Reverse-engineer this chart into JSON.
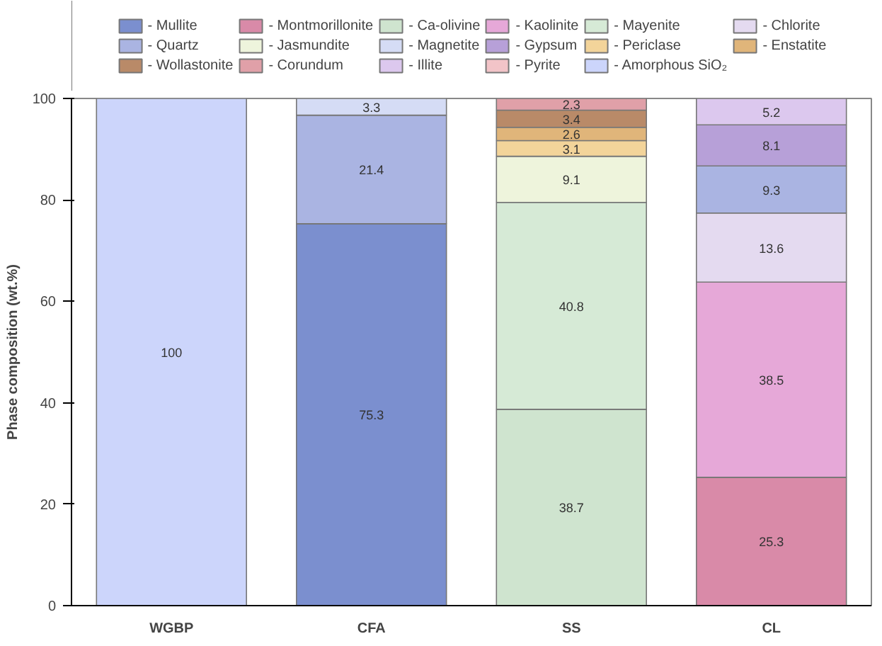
{
  "chart_data": {
    "type": "bar",
    "stacked": true,
    "ylabel": "Phase composition (wt.%)",
    "categories": [
      "WGBP",
      "CFA",
      "SS",
      "CL"
    ],
    "ylim": [
      0,
      100
    ],
    "yticks": [
      0,
      20,
      40,
      60,
      80,
      100
    ],
    "grid": false,
    "legend": "top",
    "series": [
      {
        "name": "- Mullite",
        "color": "#7b8fcf",
        "values": [
          null,
          75.3,
          null,
          null
        ],
        "value_labels": [
          null,
          "75.3",
          null,
          null
        ]
      },
      {
        "name": "- Montmorillonite",
        "color": "#d98aa8",
        "values": [
          null,
          null,
          null,
          25.3
        ],
        "value_labels": [
          null,
          null,
          null,
          "25.3"
        ]
      },
      {
        "name": "- Ca-olivine",
        "color": "#cfe4cf",
        "values": [
          null,
          null,
          38.7,
          null
        ],
        "value_labels": [
          null,
          null,
          "38.7",
          null
        ]
      },
      {
        "name": "- Kaolinite",
        "color": "#e6a8d8",
        "values": [
          null,
          null,
          null,
          38.5
        ],
        "value_labels": [
          null,
          null,
          null,
          "38.5"
        ]
      },
      {
        "name": "- Mayenite",
        "color": "#d6ead6",
        "values": [
          null,
          null,
          40.8,
          null
        ],
        "value_labels": [
          null,
          null,
          "40.8",
          null
        ]
      },
      {
        "name": "- Chlorite",
        "color": "#e4daf0",
        "values": [
          null,
          null,
          null,
          13.6
        ],
        "value_labels": [
          null,
          null,
          null,
          "13.6"
        ]
      },
      {
        "name": "- Quartz",
        "color": "#aab4e2",
        "values": [
          null,
          21.4,
          null,
          9.3
        ],
        "value_labels": [
          null,
          "21.4",
          null,
          "9.3"
        ]
      },
      {
        "name": "- Jasmundite",
        "color": "#eef4dc",
        "values": [
          null,
          null,
          9.1,
          null
        ],
        "value_labels": [
          null,
          null,
          "9.1",
          null
        ]
      },
      {
        "name": "- Magnetite",
        "color": "#d5dcf5",
        "values": [
          null,
          3.3,
          null,
          null
        ],
        "value_labels": [
          null,
          "3.3",
          null,
          null
        ]
      },
      {
        "name": "- Gypsum",
        "color": "#b7a0d8",
        "values": [
          null,
          null,
          null,
          8.1
        ],
        "value_labels": [
          null,
          null,
          null,
          "8.1"
        ]
      },
      {
        "name": "- Periclase",
        "color": "#f3d49a",
        "values": [
          null,
          null,
          3.1,
          null
        ],
        "value_labels": [
          null,
          null,
          "3.1",
          null
        ]
      },
      {
        "name": "- Enstatite",
        "color": "#e0b57a",
        "values": [
          null,
          null,
          2.6,
          null
        ],
        "value_labels": [
          null,
          null,
          "2.6",
          null
        ]
      },
      {
        "name": "- Wollastonite",
        "color": "#b98a68",
        "values": [
          null,
          null,
          3.4,
          null
        ],
        "value_labels": [
          null,
          null,
          "3.4",
          null
        ]
      },
      {
        "name": "- Corundum",
        "color": "#e0a0a8",
        "values": [
          null,
          null,
          2.3,
          null
        ],
        "value_labels": [
          null,
          null,
          "2.3",
          null
        ]
      },
      {
        "name": "- Illite",
        "color": "#dcc8ee",
        "values": [
          null,
          null,
          null,
          5.2
        ],
        "value_labels": [
          null,
          null,
          null,
          "5.2"
        ]
      },
      {
        "name": "- Pyrite",
        "color": "#f2c4c8",
        "values": [
          null,
          null,
          null,
          null
        ]
      },
      {
        "name": "- Amorphous SiO₂",
        "color": "#ccd5fb",
        "values": [
          100,
          null,
          null,
          null
        ],
        "value_labels": [
          "100",
          null,
          null,
          null
        ]
      }
    ]
  }
}
